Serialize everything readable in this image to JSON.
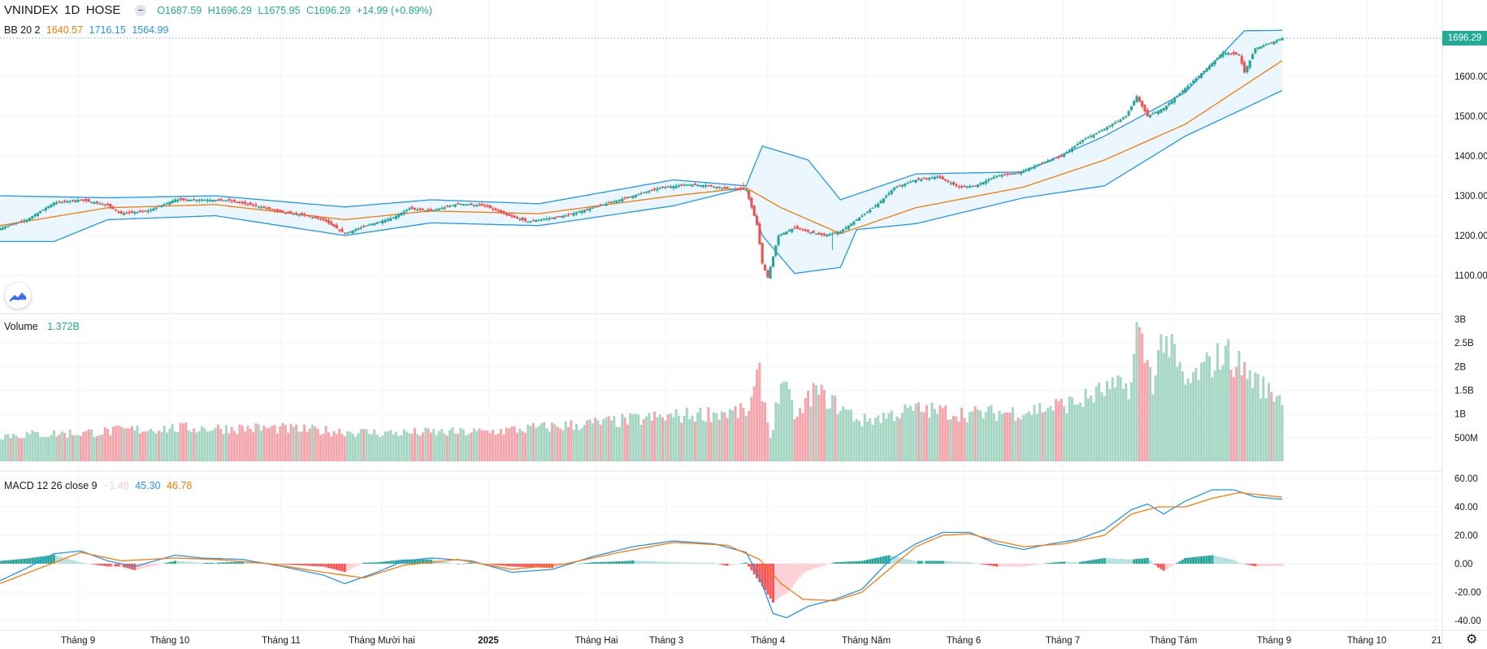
{
  "header": {
    "symbol": "VNINDEX",
    "interval": "1D",
    "exchange": "HOSE",
    "ohlc": {
      "o": "O1687.59",
      "h": "H1696.29",
      "l": "L1675.95",
      "c": "C1696.29",
      "chg": "+14.99 (+0.89%)"
    }
  },
  "bb_legend": {
    "label": "BB 20 2",
    "basis": "1640.57",
    "upper": "1716.15",
    "lower": "1564.99"
  },
  "volume_legend": {
    "label": "Volume",
    "value": "1.372B"
  },
  "macd_legend": {
    "label": "MACD 12 26 close 9",
    "hist": "−1.48",
    "macd": "45.30",
    "signal": "46.78"
  },
  "price_tag": "1696.29",
  "colors": {
    "up": "#26a69a",
    "down": "#ef5350",
    "vol_up": "#a5d6c4",
    "vol_down": "#f4a6ad",
    "bb_band": "#2196f3",
    "bb_basis": "#f57c00",
    "bb_fill": "#e3f2fd",
    "macd": "#2196f3",
    "signal": "#ff7a00",
    "hist_up_strong": "#26a69a",
    "hist_up_weak": "#b2dfdb",
    "hist_down_strong": "#ff5252",
    "hist_down_weak": "#ffcdd2"
  },
  "chart_data": [
    {
      "type": "candlestick",
      "title": "VNINDEX 1D HOSE",
      "y_axis": {
        "min": 1050,
        "max": 1750,
        "ticks": [
          "1100.00",
          "1200.00",
          "1300.00",
          "1400.00",
          "1500.00",
          "1600.00"
        ]
      },
      "x_axis": {
        "ticks": [
          "Tháng 9",
          "Tháng 10",
          "Tháng 11",
          "Tháng Mười hai",
          "2025",
          "Tháng Hai",
          "Tháng 3",
          "Tháng 4",
          "Tháng Năm",
          "Tháng 6",
          "Tháng 7",
          "Tháng Tám",
          "Tháng 9",
          "Tháng 10",
          "21"
        ]
      },
      "close_path_anchors": [
        [
          0,
          1218
        ],
        [
          10,
          1240
        ],
        [
          20,
          1282
        ],
        [
          30,
          1290
        ],
        [
          40,
          1276
        ],
        [
          45,
          1255
        ],
        [
          55,
          1262
        ],
        [
          65,
          1290
        ],
        [
          75,
          1290
        ],
        [
          85,
          1288
        ],
        [
          95,
          1275
        ],
        [
          105,
          1258
        ],
        [
          112,
          1252
        ],
        [
          120,
          1240
        ],
        [
          128,
          1205
        ],
        [
          136,
          1225
        ],
        [
          146,
          1245
        ],
        [
          152,
          1268
        ],
        [
          160,
          1262
        ],
        [
          170,
          1280
        ],
        [
          180,
          1275
        ],
        [
          188,
          1252
        ],
        [
          196,
          1235
        ],
        [
          210,
          1250
        ],
        [
          220,
          1270
        ],
        [
          230,
          1290
        ],
        [
          245,
          1320
        ],
        [
          255,
          1328
        ],
        [
          262,
          1326
        ],
        [
          270,
          1318
        ],
        [
          277,
          1315
        ],
        [
          281,
          1228
        ],
        [
          283,
          1130
        ],
        [
          285,
          1095
        ],
        [
          289,
          1200
        ],
        [
          295,
          1220
        ],
        [
          300,
          1210
        ],
        [
          306,
          1200
        ],
        [
          312,
          1210
        ],
        [
          318,
          1240
        ],
        [
          326,
          1280
        ],
        [
          332,
          1320
        ],
        [
          340,
          1340
        ],
        [
          348,
          1348
        ],
        [
          356,
          1322
        ],
        [
          362,
          1325
        ],
        [
          370,
          1350
        ],
        [
          378,
          1358
        ],
        [
          386,
          1380
        ],
        [
          394,
          1400
        ],
        [
          402,
          1440
        ],
        [
          410,
          1468
        ],
        [
          418,
          1500
        ],
        [
          422,
          1550
        ],
        [
          426,
          1500
        ],
        [
          432,
          1520
        ],
        [
          440,
          1570
        ],
        [
          448,
          1620
        ],
        [
          454,
          1660
        ],
        [
          460,
          1655
        ],
        [
          462,
          1610
        ],
        [
          466,
          1670
        ],
        [
          472,
          1685
        ],
        [
          476,
          1696
        ]
      ],
      "bollinger": {
        "basis_anchors": [
          [
            0,
            1225
          ],
          [
            40,
            1270
          ],
          [
            80,
            1278
          ],
          [
            128,
            1240
          ],
          [
            160,
            1262
          ],
          [
            200,
            1255
          ],
          [
            250,
            1300
          ],
          [
            277,
            1320
          ],
          [
            290,
            1270
          ],
          [
            312,
            1205
          ],
          [
            340,
            1270
          ],
          [
            380,
            1322
          ],
          [
            410,
            1390
          ],
          [
            440,
            1480
          ],
          [
            476,
            1640
          ]
        ],
        "upper_anchors": [
          [
            0,
            1300
          ],
          [
            40,
            1295
          ],
          [
            80,
            1300
          ],
          [
            128,
            1272
          ],
          [
            160,
            1290
          ],
          [
            200,
            1280
          ],
          [
            250,
            1340
          ],
          [
            277,
            1325
          ],
          [
            283,
            1425
          ],
          [
            300,
            1390
          ],
          [
            312,
            1290
          ],
          [
            340,
            1355
          ],
          [
            380,
            1360
          ],
          [
            410,
            1450
          ],
          [
            440,
            1560
          ],
          [
            462,
            1715
          ],
          [
            476,
            1716
          ]
        ],
        "lower_anchors": [
          [
            0,
            1185
          ],
          [
            20,
            1185
          ],
          [
            40,
            1240
          ],
          [
            80,
            1250
          ],
          [
            128,
            1200
          ],
          [
            160,
            1232
          ],
          [
            200,
            1225
          ],
          [
            250,
            1275
          ],
          [
            277,
            1320
          ],
          [
            283,
            1200
          ],
          [
            295,
            1105
          ],
          [
            312,
            1120
          ],
          [
            318,
            1215
          ],
          [
            340,
            1230
          ],
          [
            380,
            1295
          ],
          [
            410,
            1325
          ],
          [
            440,
            1450
          ],
          [
            462,
            1520
          ],
          [
            476,
            1565
          ]
        ]
      }
    },
    {
      "type": "bar",
      "title": "Volume",
      "y_axis": {
        "min": 0,
        "max": 3000000000,
        "ticks": [
          "500M",
          "1B",
          "1.5B",
          "2B",
          "2.5B",
          "3B"
        ]
      },
      "volume_anchors_billion": [
        [
          0,
          0.55
        ],
        [
          30,
          0.6
        ],
        [
          60,
          0.7
        ],
        [
          100,
          0.7
        ],
        [
          140,
          0.6
        ],
        [
          180,
          0.62
        ],
        [
          220,
          0.8
        ],
        [
          260,
          1.0
        ],
        [
          278,
          1.05
        ],
        [
          282,
          1.85
        ],
        [
          284,
          1.2
        ],
        [
          286,
          0.5
        ],
        [
          290,
          1.7
        ],
        [
          296,
          0.9
        ],
        [
          302,
          1.5
        ],
        [
          320,
          0.85
        ],
        [
          340,
          1.1
        ],
        [
          360,
          1.0
        ],
        [
          380,
          1.05
        ],
        [
          400,
          1.25
        ],
        [
          410,
          1.5
        ],
        [
          420,
          1.6
        ],
        [
          422,
          2.8
        ],
        [
          428,
          1.7
        ],
        [
          432,
          2.7
        ],
        [
          440,
          1.6
        ],
        [
          450,
          2.1
        ],
        [
          455,
          2.3
        ],
        [
          470,
          1.5
        ],
        [
          476,
          1.372
        ]
      ]
    },
    {
      "type": "line",
      "title": "MACD 12 26 close 9",
      "y_axis": {
        "min": -45,
        "max": 65,
        "ticks": [
          "-40.00",
          "-20.00",
          "0.00",
          "20.00",
          "40.00",
          "60.00"
        ]
      },
      "macd_anchors": [
        [
          0,
          -12
        ],
        [
          10,
          -3
        ],
        [
          20,
          7
        ],
        [
          30,
          9
        ],
        [
          40,
          2
        ],
        [
          50,
          -2
        ],
        [
          65,
          6
        ],
        [
          75,
          4
        ],
        [
          90,
          3
        ],
        [
          105,
          -2
        ],
        [
          120,
          -8
        ],
        [
          128,
          -14
        ],
        [
          140,
          -6
        ],
        [
          150,
          2
        ],
        [
          160,
          4
        ],
        [
          175,
          2
        ],
        [
          190,
          -6
        ],
        [
          205,
          -4
        ],
        [
          220,
          5
        ],
        [
          235,
          12
        ],
        [
          250,
          16
        ],
        [
          265,
          14
        ],
        [
          277,
          8
        ],
        [
          282,
          -10
        ],
        [
          287,
          -35
        ],
        [
          292,
          -38
        ],
        [
          300,
          -30
        ],
        [
          310,
          -25
        ],
        [
          320,
          -18
        ],
        [
          330,
          2
        ],
        [
          340,
          14
        ],
        [
          350,
          22
        ],
        [
          360,
          22
        ],
        [
          370,
          14
        ],
        [
          380,
          10
        ],
        [
          390,
          14
        ],
        [
          400,
          17
        ],
        [
          410,
          24
        ],
        [
          420,
          38
        ],
        [
          426,
          42
        ],
        [
          432,
          35
        ],
        [
          440,
          44
        ],
        [
          450,
          52
        ],
        [
          458,
          52
        ],
        [
          466,
          47
        ],
        [
          476,
          45.3
        ]
      ],
      "signal_anchors": [
        [
          0,
          -14
        ],
        [
          15,
          -3
        ],
        [
          30,
          8
        ],
        [
          45,
          2
        ],
        [
          65,
          4
        ],
        [
          80,
          3
        ],
        [
          100,
          0
        ],
        [
          120,
          -6
        ],
        [
          135,
          -10
        ],
        [
          150,
          -1
        ],
        [
          170,
          3
        ],
        [
          190,
          -4
        ],
        [
          210,
          0
        ],
        [
          230,
          8
        ],
        [
          250,
          15
        ],
        [
          270,
          13
        ],
        [
          282,
          3
        ],
        [
          290,
          -14
        ],
        [
          298,
          -25
        ],
        [
          310,
          -26
        ],
        [
          320,
          -20
        ],
        [
          330,
          -4
        ],
        [
          340,
          12
        ],
        [
          350,
          20
        ],
        [
          360,
          21
        ],
        [
          370,
          16
        ],
        [
          380,
          12
        ],
        [
          395,
          14
        ],
        [
          410,
          20
        ],
        [
          420,
          35
        ],
        [
          430,
          40
        ],
        [
          440,
          40
        ],
        [
          450,
          46
        ],
        [
          460,
          50
        ],
        [
          476,
          46.78
        ]
      ]
    }
  ]
}
